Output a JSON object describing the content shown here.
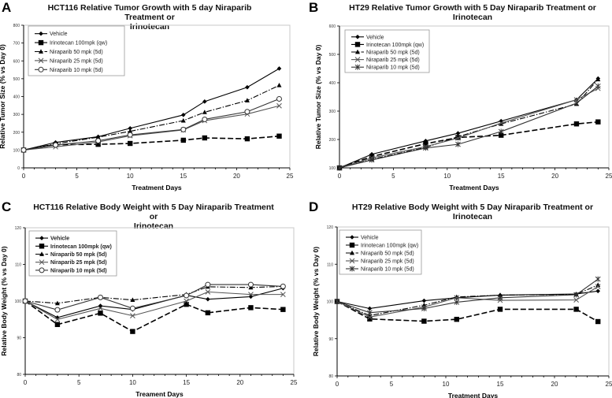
{
  "chart_data": [
    {
      "type": "line",
      "letter": "A",
      "title": "HCT116 Relative Tumor Growth with 5 day Niraparib Treatment or Irinotecan",
      "title_lines": [
        "HCT116 Relative Tumor Growth with 5 day Niraparib Treatment or",
        "Irinotecan"
      ],
      "xlabel": "Treatment Days",
      "ylabel": "Relative Tumor Size (% vs Day 0)",
      "xlim": [
        0,
        25
      ],
      "xticks": [
        0,
        5,
        10,
        15,
        20,
        25
      ],
      "ylim": [
        0,
        800
      ],
      "yticks": [
        0,
        100,
        200,
        300,
        400,
        500,
        600,
        700,
        800
      ],
      "legend": "top-left",
      "x": [
        0,
        3,
        7,
        10,
        15,
        17,
        21,
        24
      ],
      "series": [
        {
          "name": "Vehicle",
          "marker": "diamond",
          "style": "solid",
          "values": [
            100,
            143,
            175,
            222,
            297,
            372,
            452,
            557
          ]
        },
        {
          "name": "Irinotecan 100mpk (qw)",
          "marker": "square",
          "style": "dashed",
          "values": [
            100,
            130,
            132,
            137,
            155,
            168,
            163,
            178
          ]
        },
        {
          "name": "Niraparib 50 mpk (5d)",
          "marker": "triangle",
          "style": "dashdot",
          "values": [
            100,
            135,
            172,
            205,
            265,
            312,
            378,
            463
          ]
        },
        {
          "name": "Niraparib 25 mpk (5d)",
          "marker": "x",
          "style": "solid",
          "values": [
            100,
            118,
            145,
            180,
            213,
            265,
            302,
            348
          ]
        },
        {
          "name": "Niraparib 10 mpk (5d)",
          "marker": "circle",
          "style": "solid",
          "values": [
            100,
            128,
            152,
            185,
            215,
            272,
            315,
            387
          ]
        }
      ]
    },
    {
      "type": "line",
      "letter": "B",
      "title": "HT29 Relative Tumor Growth with 5 Day Niraparib Treatment or Irinotecan",
      "title_lines": [
        "HT29 Relative Tumor Growth with 5 Day Niraparib Treatment or",
        "Irinotecan"
      ],
      "xlabel": "Treatment Days",
      "ylabel": "Relative Tumor Size (% vs Day 0)",
      "xlim": [
        0,
        25
      ],
      "xticks": [
        0,
        5,
        10,
        15,
        20,
        25
      ],
      "ylim": [
        100,
        600
      ],
      "yticks": [
        100,
        200,
        300,
        400,
        500,
        600
      ],
      "legend": "top-left",
      "x": [
        0,
        3,
        8,
        11,
        15,
        22,
        24
      ],
      "series": [
        {
          "name": "Vehicle",
          "marker": "diamond",
          "style": "solid",
          "values": [
            100,
            148,
            195,
            222,
            265,
            340,
            415
          ]
        },
        {
          "name": "Irinotecan 100mpk (qw)",
          "marker": "square",
          "style": "dashed",
          "values": [
            100,
            140,
            185,
            207,
            215,
            255,
            262
          ]
        },
        {
          "name": "Niraparib 50 mpk (5d)",
          "marker": "triangle",
          "style": "dashdot",
          "values": [
            100,
            130,
            172,
            210,
            255,
            325,
            412
          ]
        },
        {
          "name": "Niraparib 25 mpk (5d)",
          "marker": "x",
          "style": "solid",
          "values": [
            100,
            135,
            175,
            205,
            258,
            340,
            380
          ]
        },
        {
          "name": "Niraparib 10 mpk (5d)",
          "marker": "star",
          "style": "solid",
          "values": [
            100,
            128,
            170,
            183,
            228,
            328,
            388
          ]
        }
      ]
    },
    {
      "type": "line",
      "letter": "C",
      "title": "HCT116 Relative Body Weight with 5 Day Niraparib Treatment or Irinotecan",
      "title_lines": [
        "HCT116 Relative Body Weight with 5 Day Niraparib Treatment or",
        "Irinotecan"
      ],
      "xlabel": "Treament Days",
      "ylabel": "Relative Body Weight (% vs Day 0)",
      "xlim": [
        0,
        25
      ],
      "xticks": [
        0,
        5,
        10,
        15,
        20,
        25
      ],
      "ylim": [
        80,
        120
      ],
      "yticks": [
        80,
        90,
        100,
        110,
        120
      ],
      "legend": "top-left",
      "x": [
        0,
        3,
        7,
        10,
        15,
        17,
        21,
        24
      ],
      "series": [
        {
          "name": "Vehicle",
          "marker": "diamond",
          "style": "solid",
          "values": [
            100,
            95.5,
            98.7,
            97.7,
            101.6,
            100.5,
            101.2,
            103.5
          ]
        },
        {
          "name": "Irinotecan 100mpk (qw)",
          "marker": "square",
          "style": "dashed",
          "values": [
            100,
            93.6,
            96.7,
            91.7,
            99.1,
            96.8,
            98.2,
            97.7
          ]
        },
        {
          "name": "Niraparib 50 mpk (5d)",
          "marker": "triangle",
          "style": "dashdot",
          "values": [
            100,
            99.4,
            101,
            100.3,
            101.8,
            103.9,
            103.7,
            104
          ]
        },
        {
          "name": "Niraparib 25 mpk (5d)",
          "marker": "x",
          "style": "solid",
          "values": [
            100,
            95,
            98,
            96,
            100,
            102.5,
            101.8,
            101.8
          ]
        },
        {
          "name": "Niraparib 10 mpk (5d)",
          "marker": "circle",
          "style": "solid",
          "values": [
            100,
            97.6,
            101,
            98,
            101.5,
            104.5,
            104.5,
            104
          ]
        }
      ]
    },
    {
      "type": "line",
      "letter": "D",
      "title": "HT29 Relative Body Weight with 5 Day Niraparib Treatment  or Irinotecan",
      "title_lines": [
        "HT29 Relative Body Weight with 5 Day Niraparib Treatment  or",
        "Irinotecan"
      ],
      "xlabel": "Treatment Days",
      "ylabel": "Relative Body Weight (% vs Day 0)",
      "xlim": [
        0,
        25
      ],
      "xticks": [
        0,
        5,
        10,
        15,
        20,
        25
      ],
      "ylim": [
        80,
        120
      ],
      "yticks": [
        80,
        90,
        100,
        110,
        120
      ],
      "legend": "top-left",
      "x": [
        0,
        3,
        8,
        11,
        15,
        22,
        24
      ],
      "series": [
        {
          "name": "Vehicle",
          "marker": "diamond",
          "style": "solid",
          "values": [
            100,
            98.1,
            100.2,
            101,
            101.7,
            102,
            102.8
          ]
        },
        {
          "name": "Irinotecan 100mpk (qw)",
          "marker": "square",
          "style": "dashed",
          "values": [
            100,
            95.3,
            94.7,
            95.2,
            97.9,
            97.9,
            94.6
          ]
        },
        {
          "name": "Niraparib 50 mpk (5d)",
          "marker": "triangle",
          "style": "dashdot",
          "values": [
            100,
            96.2,
            99,
            101.2,
            101.7,
            101.9,
            104.4
          ]
        },
        {
          "name": "Niraparib 25 mpk (5d)",
          "marker": "x",
          "style": "solid",
          "values": [
            100,
            95.8,
            98.5,
            101,
            100.3,
            100.4,
            104
          ]
        },
        {
          "name": "Niraparib 10 mpk (5d)",
          "marker": "star",
          "style": "solid",
          "values": [
            100,
            97,
            98.1,
            99.8,
            101,
            101.8,
            106
          ]
        }
      ]
    }
  ]
}
